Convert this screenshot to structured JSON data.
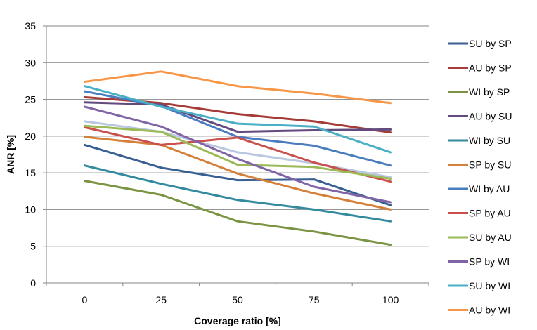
{
  "chart_data": {
    "type": "line",
    "x": [
      0,
      25,
      50,
      75,
      100
    ],
    "xlabel": "Coverage ratio [%]",
    "ylabel": "ANR [%]",
    "ylim": [
      0,
      35
    ],
    "y_ticks": [
      0,
      5,
      10,
      15,
      20,
      25,
      30,
      35
    ],
    "grid": "horizontal",
    "legend_position": "right",
    "series": [
      {
        "name": "SU by SP",
        "color": "#3A5F92",
        "values": [
          18.8,
          15.7,
          14.0,
          14.1,
          10.6
        ]
      },
      {
        "name": "AU by SP",
        "color": "#A63C38",
        "values": [
          25.3,
          24.5,
          23.0,
          22.0,
          20.5
        ]
      },
      {
        "name": "WI by SP",
        "color": "#7A9441",
        "values": [
          13.9,
          12.0,
          8.4,
          7.0,
          5.2
        ]
      },
      {
        "name": "AU by SU",
        "color": "#644B7E",
        "values": [
          24.6,
          24.3,
          20.6,
          20.8,
          20.9
        ]
      },
      {
        "name": "WI by SU",
        "color": "#338A9E",
        "values": [
          16.0,
          13.5,
          11.3,
          10.0,
          8.4
        ]
      },
      {
        "name": "SP by SU",
        "color": "#D5803A",
        "values": [
          19.9,
          18.8,
          14.9,
          12.2,
          10.0
        ]
      },
      {
        "name": "WI by AU",
        "color": "#4A7DBF",
        "values": [
          26.1,
          24.1,
          19.9,
          18.7,
          16.0
        ]
      },
      {
        "name": "SP by AU",
        "color": "#C9504C",
        "values": [
          21.2,
          18.8,
          19.8,
          16.4,
          13.8
        ]
      },
      {
        "name": "SU by AU",
        "color": "#9BBA57",
        "values": [
          21.4,
          20.6,
          16.1,
          15.8,
          14.2
        ]
      },
      {
        "name": "SP by WI",
        "color": "#8064A6",
        "values": [
          24.0,
          21.3,
          16.9,
          13.1,
          11.0
        ]
      },
      {
        "name": "SU by WI",
        "color": "#4BAFC5",
        "values": [
          26.8,
          24.0,
          21.7,
          21.3,
          17.8
        ]
      },
      {
        "name": "AU by WI",
        "color": "#F79646",
        "values": [
          27.4,
          28.8,
          26.8,
          25.8,
          24.5
        ]
      },
      {
        "color": "#B9C8E0",
        "values": [
          22.0,
          20.6,
          17.8,
          16.3,
          14.4
        ]
      }
    ]
  }
}
